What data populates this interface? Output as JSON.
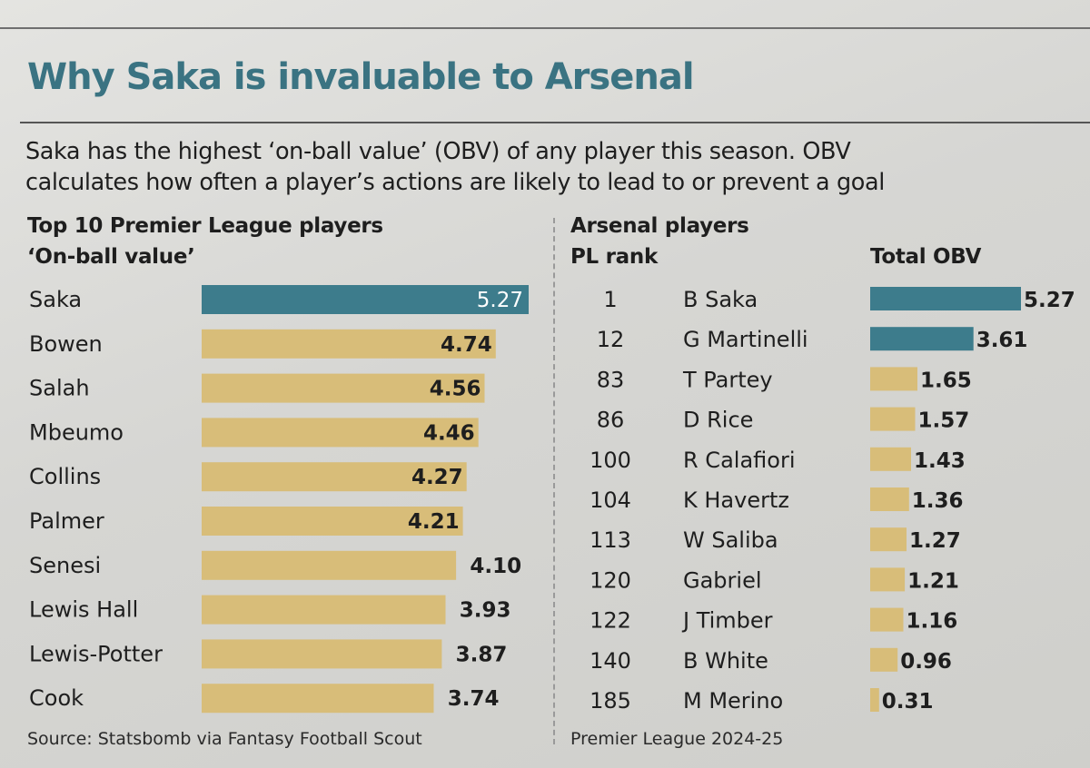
{
  "title": "Why Saka is invaluable to Arsenal",
  "intro_lines": [
    "Saka has the highest ‘on-ball value’ (OBV) of any player this season. OBV",
    "calculates how often a player’s actions are likely to lead to or prevent a goal"
  ],
  "colors": {
    "teal": "#3d7c8c",
    "gold": "#d8bd79",
    "title": "#3a7382"
  },
  "chart_data": [
    {
      "type": "bar",
      "orientation": "horizontal",
      "title": "Top 10 Premier League players",
      "subtitle": "‘On-ball value’",
      "categories": [
        "Saka",
        "Bowen",
        "Salah",
        "Mbeumo",
        "Collins",
        "Palmer",
        "Senesi",
        "Lewis Hall",
        "Lewis-Potter",
        "Cook"
      ],
      "values": [
        5.27,
        4.74,
        4.56,
        4.46,
        4.27,
        4.21,
        4.1,
        3.93,
        3.87,
        3.74
      ],
      "value_labels": [
        "5.27",
        "4.74",
        "4.56",
        "4.46",
        "4.27",
        "4.21",
        "4.10",
        "3.93",
        "3.87",
        "3.74"
      ],
      "highlight": [
        "Saka"
      ]
    },
    {
      "type": "bar",
      "orientation": "horizontal",
      "title": "Arsenal players",
      "rank_header": "PL rank",
      "value_header": "Total OBV",
      "ranks": [
        "1",
        "12",
        "83",
        "86",
        "100",
        "104",
        "113",
        "120",
        "122",
        "140",
        "185"
      ],
      "categories": [
        "B Saka",
        "G Martinelli",
        "T Partey",
        "D Rice",
        "R Calafiori",
        "K Havertz",
        "W Saliba",
        "Gabriel",
        "J Timber",
        "B White",
        "M Merino"
      ],
      "values": [
        5.27,
        3.61,
        1.65,
        1.57,
        1.43,
        1.36,
        1.27,
        1.21,
        1.16,
        0.96,
        0.31
      ],
      "value_labels": [
        "5.27",
        "3.61",
        "1.65",
        "1.57",
        "1.43",
        "1.36",
        "1.27",
        "1.21",
        "1.16",
        "0.96",
        "0.31"
      ],
      "highlight": [
        "B Saka",
        "G Martinelli"
      ]
    }
  ],
  "footer": {
    "source": "Source: Statsbomb via Fantasy Football Scout",
    "season": "Premier League 2024-25"
  }
}
